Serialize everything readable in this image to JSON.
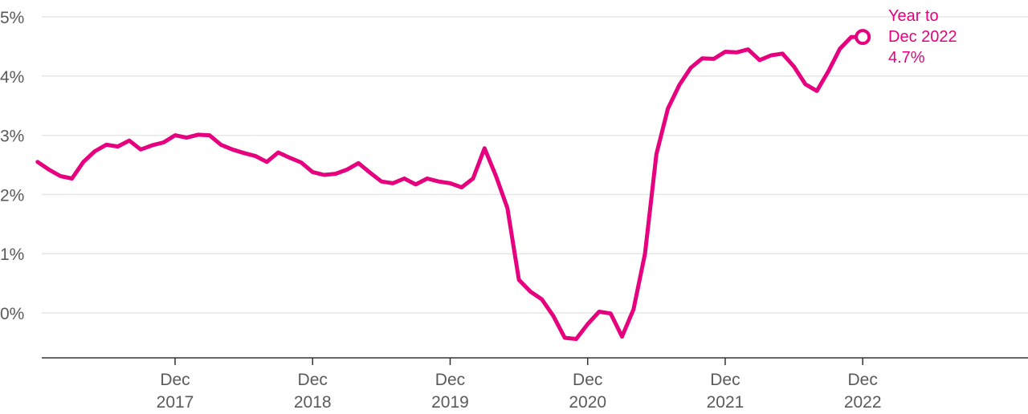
{
  "chart_data": {
    "type": "line",
    "title": "",
    "xlabel": "",
    "ylabel": "",
    "y_unit": "%",
    "ylim": [
      -0.7,
      5.0
    ],
    "y_ticks": [
      0,
      1,
      2,
      3,
      4,
      5
    ],
    "y_tick_labels": [
      "0%",
      "1%",
      "2%",
      "3%",
      "4%",
      "5%"
    ],
    "grid": "horizontal",
    "x_ticks": [
      {
        "date": "2017-12",
        "line1": "Dec",
        "line2": "2017"
      },
      {
        "date": "2018-12",
        "line1": "Dec",
        "line2": "2018"
      },
      {
        "date": "2019-12",
        "line1": "Dec",
        "line2": "2019"
      },
      {
        "date": "2020-12",
        "line1": "Dec",
        "line2": "2020"
      },
      {
        "date": "2021-12",
        "line1": "Dec",
        "line2": "2021"
      },
      {
        "date": "2022-12",
        "line1": "Dec",
        "line2": "2022"
      }
    ],
    "x_range": [
      "2016-09",
      "2023-09"
    ],
    "colors": {
      "line": "#e6007e",
      "grid": "#e6e6e6",
      "axis": "#333333",
      "tick_text": "#5a5a5a"
    },
    "series": [
      {
        "x": [
          "2016-12",
          "2017-01",
          "2017-02",
          "2017-03",
          "2017-04",
          "2017-05",
          "2017-06",
          "2017-07",
          "2017-08",
          "2017-09",
          "2017-10",
          "2017-11",
          "2017-12",
          "2018-01",
          "2018-02",
          "2018-03",
          "2018-04",
          "2018-05",
          "2018-06",
          "2018-07",
          "2018-08",
          "2018-09",
          "2018-10",
          "2018-11",
          "2018-12",
          "2019-01",
          "2019-02",
          "2019-03",
          "2019-04",
          "2019-05",
          "2019-06",
          "2019-07",
          "2019-08",
          "2019-09",
          "2019-10",
          "2019-11",
          "2019-12",
          "2020-01",
          "2020-02",
          "2020-03",
          "2020-04",
          "2020-05",
          "2020-06",
          "2020-07",
          "2020-08",
          "2020-09",
          "2020-10",
          "2020-11",
          "2020-12",
          "2021-01",
          "2021-02",
          "2021-03",
          "2021-04",
          "2021-05",
          "2021-06",
          "2021-07",
          "2021-08",
          "2021-09",
          "2021-10",
          "2021-11",
          "2021-12",
          "2022-01",
          "2022-02",
          "2022-03",
          "2022-04",
          "2022-05",
          "2022-06",
          "2022-07",
          "2022-08",
          "2022-09",
          "2022-10",
          "2022-11",
          "2022-12"
        ],
        "y": [
          2.55,
          2.42,
          2.31,
          2.27,
          2.55,
          2.73,
          2.84,
          2.81,
          2.91,
          2.76,
          2.83,
          2.88,
          3.0,
          2.96,
          3.01,
          3.0,
          2.84,
          2.76,
          2.7,
          2.65,
          2.55,
          2.71,
          2.62,
          2.54,
          2.38,
          2.33,
          2.35,
          2.42,
          2.53,
          2.37,
          2.22,
          2.19,
          2.27,
          2.17,
          2.27,
          2.22,
          2.19,
          2.12,
          2.27,
          2.78,
          2.31,
          1.77,
          0.56,
          0.36,
          0.23,
          -0.05,
          -0.42,
          -0.44,
          -0.19,
          0.02,
          -0.01,
          -0.4,
          0.06,
          1.0,
          2.68,
          3.45,
          3.85,
          4.14,
          4.3,
          4.29,
          4.41,
          4.4,
          4.45,
          4.27,
          4.35,
          4.38,
          4.16,
          3.86,
          3.75,
          4.08,
          4.46,
          4.66,
          4.66
        ]
      }
    ],
    "annotation": {
      "lines": [
        "Year to",
        "Dec 2022",
        "4.7%"
      ],
      "date": "2022-12",
      "value": 4.66
    }
  }
}
